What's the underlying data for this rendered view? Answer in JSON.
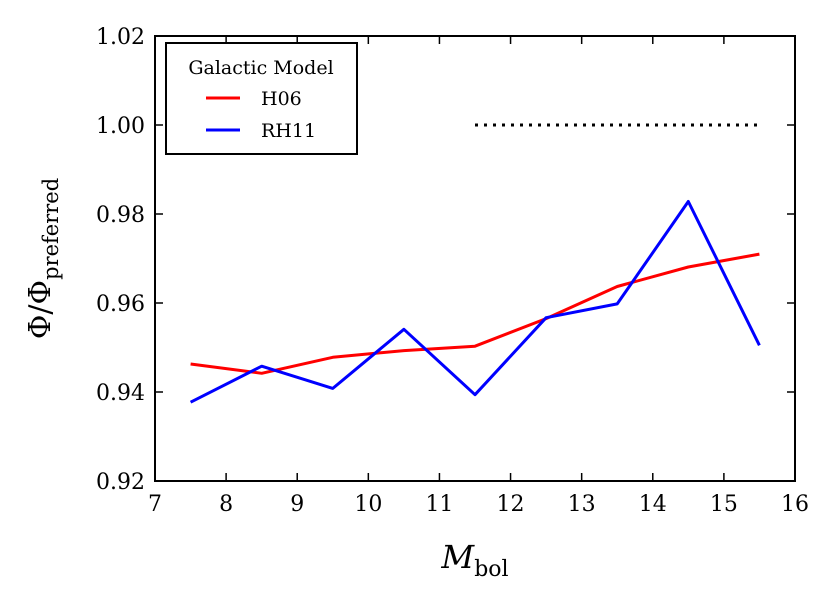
{
  "chart_data": {
    "type": "line",
    "xlabel": {
      "main": "M",
      "sub": "bol"
    },
    "ylabel": {
      "main": "Φ/Φ",
      "sub": "preferred"
    },
    "xlim": [
      7,
      16
    ],
    "ylim": [
      0.92,
      1.02
    ],
    "xticks": [
      "7",
      "8",
      "9",
      "10",
      "11",
      "12",
      "13",
      "14",
      "15",
      "16"
    ],
    "yticks": [
      "0.92",
      "0.94",
      "0.96",
      "0.98",
      "1.00",
      "1.02"
    ],
    "x": [
      7.5,
      8.5,
      9.5,
      10.5,
      11.5,
      12.5,
      13.5,
      14.5,
      15.5
    ],
    "series": [
      {
        "name": "H06",
        "color": "#ff0000",
        "values": [
          0.9463,
          0.9442,
          0.9478,
          0.9493,
          0.9503,
          0.9565,
          0.9637,
          0.9681,
          0.971
        ]
      },
      {
        "name": "RH11",
        "color": "#0000ff",
        "values": [
          0.9377,
          0.9458,
          0.9408,
          0.9541,
          0.9394,
          0.9567,
          0.9598,
          0.9828,
          0.9505
        ]
      }
    ],
    "reference_line": {
      "y": 1.0,
      "x_range": [
        11.5,
        15.5
      ],
      "style": "dotted",
      "color": "#000000"
    },
    "legend": {
      "title": "Galactic Model",
      "placement": "top-left"
    },
    "grid": false
  }
}
